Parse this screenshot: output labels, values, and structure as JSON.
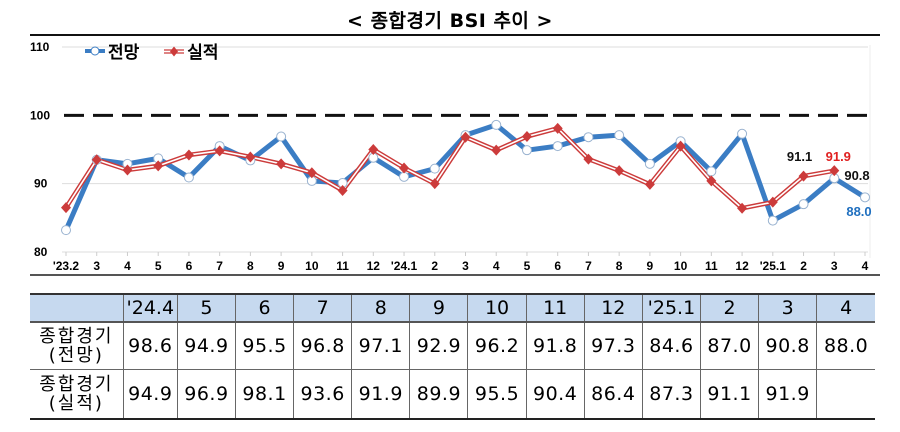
{
  "title": "< 종합경기 BSI 추이 >",
  "legend": {
    "forecast": "전망",
    "actual": "실적"
  },
  "colors": {
    "forecast": "#3b7dc4",
    "actual": "#cc3b3b",
    "header_fill": "#c6d9ef",
    "label_red": "#e02020",
    "label_blue": "#1f6fbf"
  },
  "annotations": {
    "actual_feb25": "91.1",
    "actual_mar25": "91.9",
    "forecast_mar25": "90.8",
    "forecast_apr25": "88.0"
  },
  "chart_data": {
    "type": "line",
    "title": "< 종합경기 BSI 추이 >",
    "xlabel": "",
    "ylabel": "",
    "ylim": [
      80,
      110
    ],
    "yticks": [
      80,
      90,
      100,
      110
    ],
    "reference_line": {
      "y": 100,
      "style": "dashed"
    },
    "grid": true,
    "legend_position": "top-left",
    "categories": [
      "'23.2",
      "3",
      "4",
      "5",
      "6",
      "7",
      "8",
      "9",
      "10",
      "11",
      "12",
      "'24.1",
      "2",
      "3",
      "4",
      "5",
      "6",
      "7",
      "8",
      "9",
      "10",
      "11",
      "12",
      "'25.1",
      "2",
      "3",
      "4"
    ],
    "series": [
      {
        "name": "전망",
        "values": [
          83.2,
          93.5,
          92.9,
          93.7,
          90.9,
          95.5,
          93.4,
          96.9,
          90.4,
          90.1,
          93.8,
          91.0,
          92.2,
          97.1,
          98.6,
          94.9,
          95.5,
          96.8,
          97.1,
          92.9,
          96.2,
          91.8,
          97.3,
          84.6,
          87.0,
          90.8,
          88.0
        ]
      },
      {
        "name": "실적",
        "values": [
          86.5,
          93.5,
          92.0,
          92.6,
          94.2,
          94.8,
          93.9,
          92.9,
          91.6,
          89.0,
          95.0,
          92.3,
          90.0,
          96.8,
          94.9,
          96.9,
          98.1,
          93.6,
          91.9,
          89.9,
          95.5,
          90.4,
          86.4,
          87.3,
          91.1,
          91.9,
          null
        ]
      }
    ]
  },
  "table": {
    "columns": [
      "'24.4",
      "5",
      "6",
      "7",
      "8",
      "9",
      "10",
      "11",
      "12",
      "'25.1",
      "2",
      "3",
      "4"
    ],
    "rows": [
      {
        "label_line1": "종합경기",
        "label_line2": "(전망)",
        "values": [
          "98.6",
          "94.9",
          "95.5",
          "96.8",
          "97.1",
          "92.9",
          "96.2",
          "91.8",
          "97.3",
          "84.6",
          "87.0",
          "90.8",
          "88.0"
        ]
      },
      {
        "label_line1": "종합경기",
        "label_line2": "(실적)",
        "values": [
          "94.9",
          "96.9",
          "98.1",
          "93.6",
          "91.9",
          "89.9",
          "95.5",
          "90.4",
          "86.4",
          "87.3",
          "91.1",
          "91.9",
          ""
        ]
      }
    ]
  }
}
